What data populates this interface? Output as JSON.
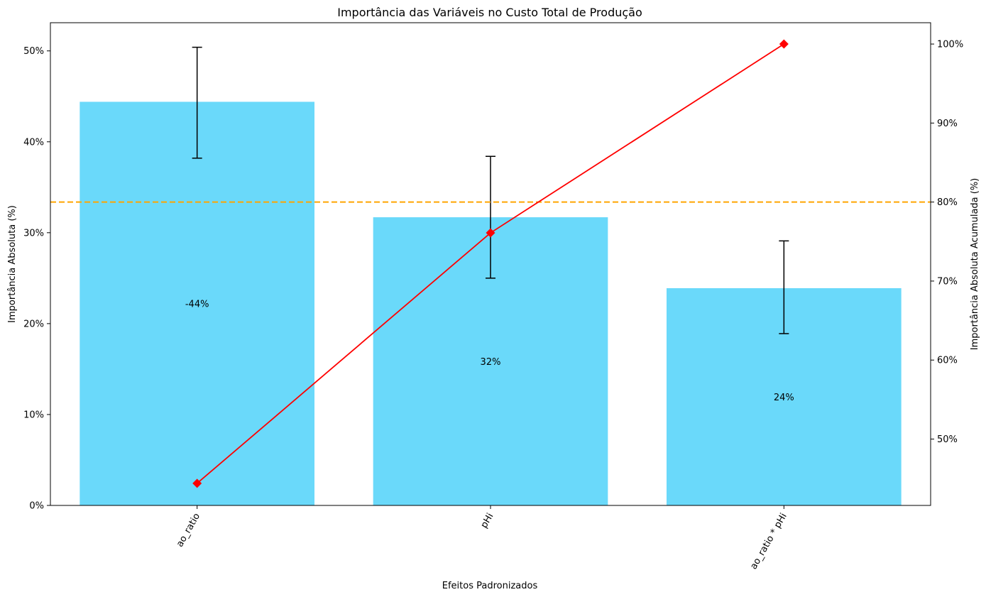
{
  "chart_data": {
    "type": "bar",
    "title": "Importância das Variáveis no Custo Total de Produção",
    "xlabel": "Efeitos Padronizados",
    "ylabel": "Importância Absoluta (%)",
    "ylabel_right": "Importância Absoluta Acumulada (%)",
    "categories": [
      "ao_ratio",
      "pHi",
      "ao_ratio * pHi"
    ],
    "bar_labels": [
      "-44%",
      "32%",
      "24%"
    ],
    "series": [
      {
        "values": [
          44.4,
          31.7,
          23.9
        ],
        "error_low": [
          38.2,
          25.0,
          18.9
        ],
        "error_high": [
          50.4,
          38.4,
          29.1
        ],
        "color": "#6ad9fa",
        "axis": "left"
      },
      {
        "values": [
          44.4,
          76.1,
          100.0
        ],
        "color": "#ff0000",
        "marker": "diamond",
        "axis": "right",
        "style": "line"
      }
    ],
    "reference_line": {
      "value": 80,
      "axis": "right",
      "color": "#ffa500",
      "style": "dashed"
    },
    "ylim": [
      0,
      53.1
    ],
    "ylim_right": [
      41.6,
      102.7
    ],
    "yticks": [
      0,
      10,
      20,
      30,
      40,
      50
    ],
    "ytick_labels": [
      "0%",
      "10%",
      "20%",
      "30%",
      "40%",
      "50%"
    ],
    "yticks_right": [
      50,
      60,
      70,
      80,
      90,
      100
    ],
    "ytick_labels_right": [
      "50%",
      "60%",
      "70%",
      "80%",
      "90%",
      "100%"
    ],
    "grid": false,
    "legend": "none"
  }
}
